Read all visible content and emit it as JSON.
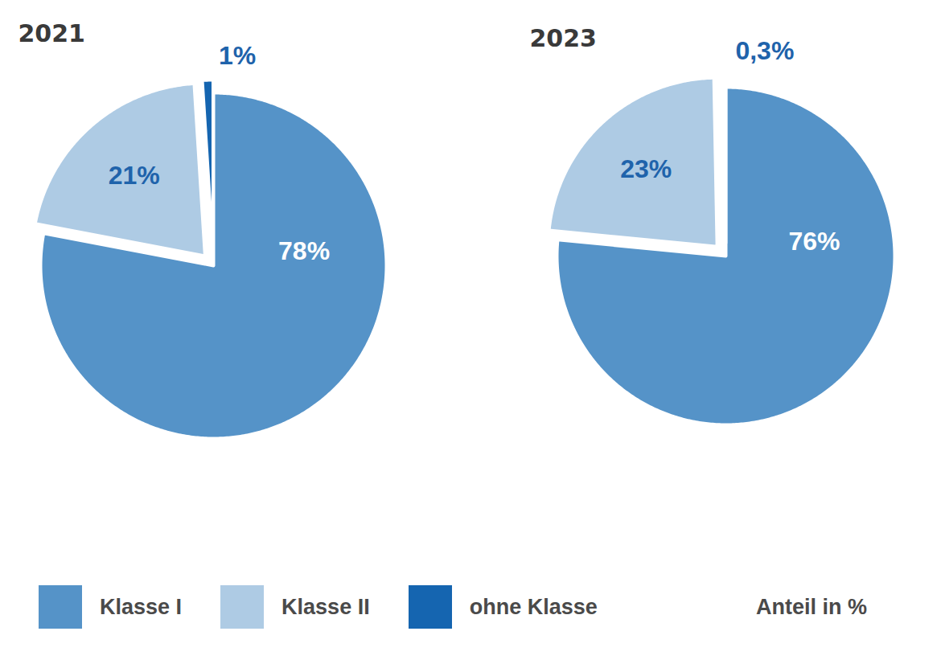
{
  "chart_data": [
    {
      "type": "pie",
      "title": "2021",
      "categories": [
        "Klasse I",
        "Klasse II",
        "ohne Klasse"
      ],
      "values": [
        78,
        21,
        1
      ],
      "value_labels": [
        "78%",
        "21%",
        "1%"
      ],
      "colors": [
        "#5593c8",
        "#aecbe4",
        "#1565b0"
      ],
      "data_labels": true,
      "legend": "bottom"
    },
    {
      "type": "pie",
      "title": "2023",
      "categories": [
        "Klasse I",
        "Klasse II",
        "ohne Klasse"
      ],
      "values": [
        76,
        23,
        0.3
      ],
      "value_labels": [
        "76%",
        "23%",
        "0,3%"
      ],
      "colors": [
        "#5593c8",
        "#aecbe4",
        "#1565b0"
      ],
      "data_labels": true,
      "annotations": [
        "Anteil in %"
      ]
    }
  ]
}
